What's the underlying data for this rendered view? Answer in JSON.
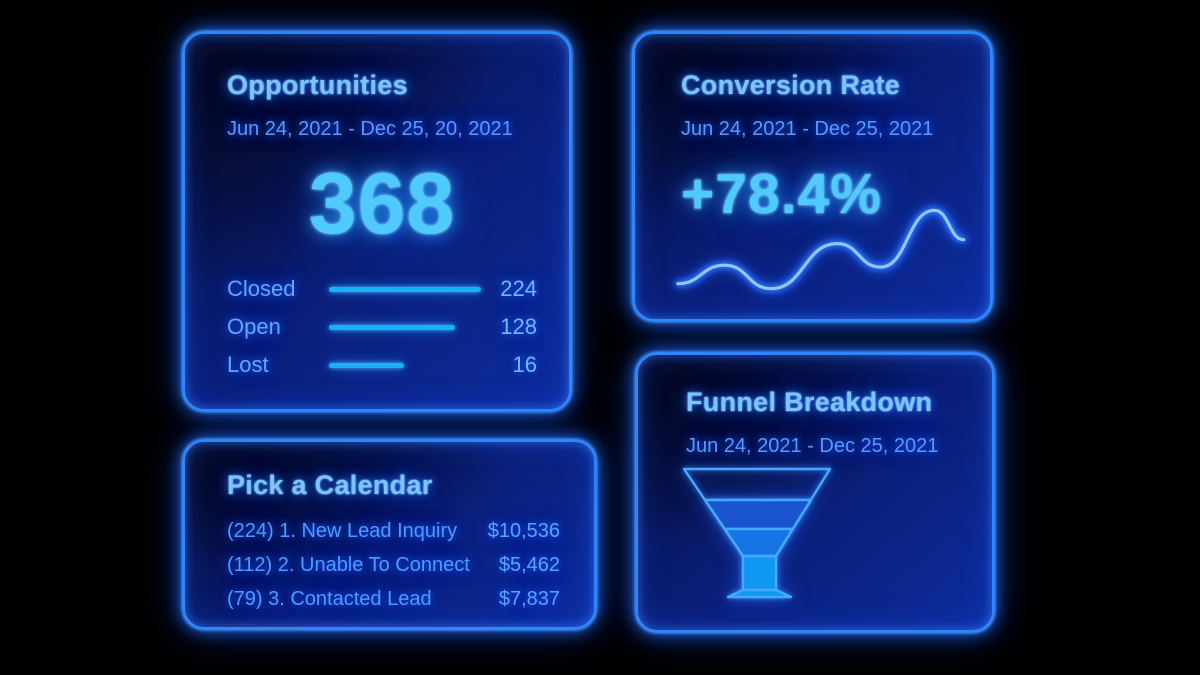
{
  "colors": {
    "page_bg": "#000000",
    "card_border": "#2e86ff",
    "title_text": "#7cc4ff",
    "date_text": "#5b97ff",
    "metric_text": "#4ecaff",
    "bar_fill": "#14b2f6",
    "wave_core": "#8fc8ff",
    "wave_glow": "#1d5eff",
    "funnel_band2": "#1a54cf",
    "funnel_band3": "#1573e6",
    "funnel_stem": "#0f97f2",
    "funnel_stroke": "#46a8ff"
  },
  "cards": {
    "opportunities": {
      "title": "Opportunities",
      "date_range": "Jun 24, 2021 - Dec 25, 20, 2021",
      "total": "368",
      "rows": [
        {
          "label": "Closed",
          "value": "224",
          "bar_pct": 95
        },
        {
          "label": "Open",
          "value": "128",
          "bar_pct": 79
        },
        {
          "label": "Lost",
          "value": "16",
          "bar_pct": 47
        }
      ]
    },
    "conversion_rate": {
      "title": "Conversion Rate",
      "date_range": "Jun 24, 2021 - Dec 25, 2021",
      "value": "+78.4%",
      "trend_points": [
        [
          43,
          255
        ],
        [
          91,
          236
        ],
        [
          138,
          260
        ],
        [
          206,
          214
        ],
        [
          250,
          238
        ],
        [
          305,
          180
        ],
        [
          335,
          210
        ]
      ]
    },
    "pick_calendar": {
      "title": "Pick a Calendar",
      "rows": [
        {
          "label": "(224) 1. New Lead Inquiry",
          "amount": "$10,536"
        },
        {
          "label": "(112) 2. Unable To Connect",
          "amount": "$5,462"
        },
        {
          "label": "(79) 3. Contacted Lead",
          "amount": "$7,837"
        }
      ]
    },
    "funnel_breakdown": {
      "title": "Funnel Breakdown",
      "date_range": "Jun 24, 2021 - Dec 25, 2021",
      "segments": 4
    }
  },
  "chart_data": [
    {
      "type": "bar",
      "title": "Opportunities",
      "subtitle": "Jun 24, 2021 - Dec 25, 20, 2021",
      "total": 368,
      "categories": [
        "Closed",
        "Open",
        "Lost"
      ],
      "values": [
        224,
        128,
        16
      ],
      "legend_position": "none",
      "grid": false
    },
    {
      "type": "line",
      "title": "Conversion Rate",
      "subtitle": "Jun 24, 2021 - Dec 25, 2021",
      "value_label": "+78.4%",
      "note": "unlabeled trend sparkline, rising with three peaks"
    },
    {
      "type": "table",
      "title": "Pick a Calendar",
      "rows": [
        [
          "(224) 1. New Lead Inquiry",
          "$10,536"
        ],
        [
          "(112) 2. Unable To Connect",
          "$5,462"
        ],
        [
          "(79) 3. Contacted Lead",
          "$7,837"
        ]
      ]
    },
    {
      "type": "funnel",
      "title": "Funnel Breakdown",
      "subtitle": "Jun 24, 2021 - Dec 25, 2021",
      "note": "4-segment funnel glyph, no labels"
    }
  ]
}
